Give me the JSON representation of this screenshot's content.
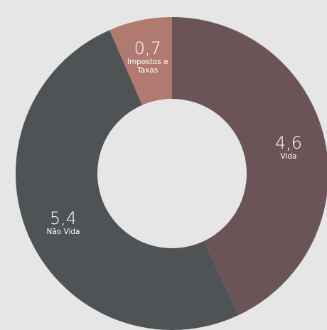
{
  "chart_data": {
    "type": "donut",
    "categories": [
      "Vida",
      "Não Vida",
      "Impostos e Taxas"
    ],
    "values": [
      4.6,
      5.4,
      0.7
    ],
    "value_labels": [
      "4,6",
      "5,4",
      "0,7"
    ],
    "colors": [
      "#6b5457",
      "#4f5355",
      "#b07a70"
    ]
  }
}
